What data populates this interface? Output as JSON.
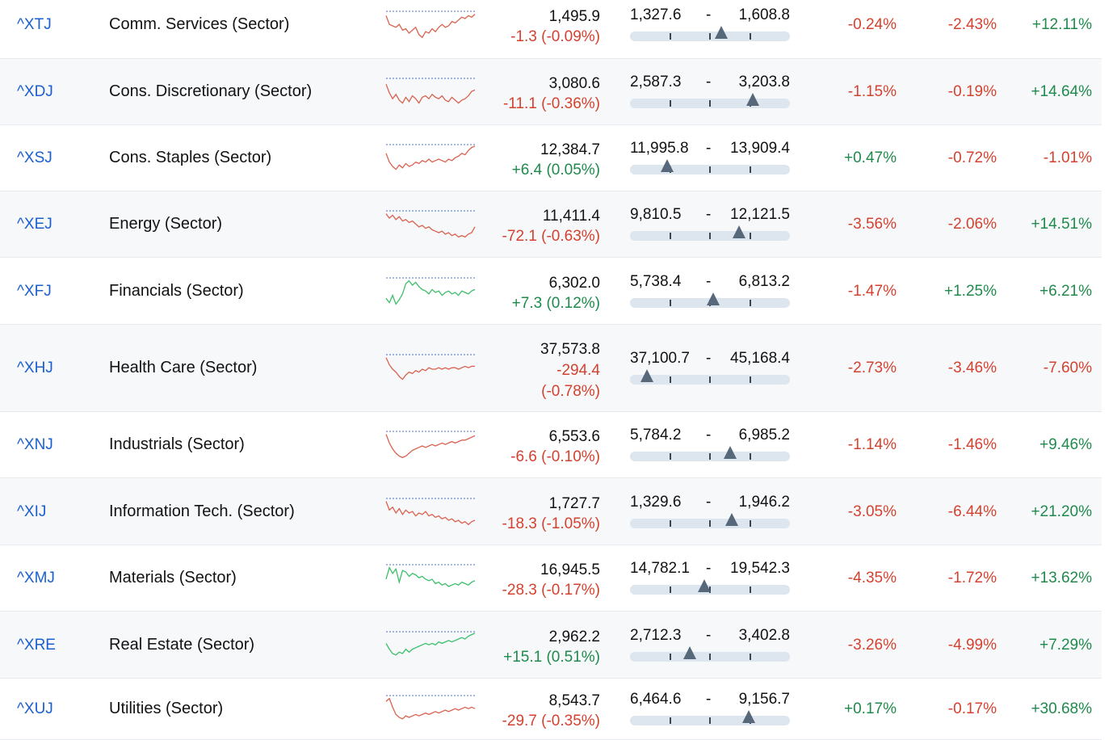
{
  "rows": [
    {
      "symbol": "^XTJ",
      "name": "Comm. Services (Sector)",
      "price": "1,495.9",
      "change": "-1.3 (-0.09%)",
      "change_dir": "neg",
      "low": "1,327.6",
      "high": "1,608.8",
      "range_pos": 0.58,
      "d1": "-0.24%",
      "d2": "-2.43%",
      "d3": "+12.11%",
      "spark": [
        0.15,
        0.45,
        0.5,
        0.55,
        0.45,
        0.65,
        0.6,
        0.75,
        0.65,
        0.55,
        0.8,
        0.9,
        0.7,
        0.75,
        0.6,
        0.7,
        0.55,
        0.45,
        0.55,
        0.5,
        0.35,
        0.4,
        0.3,
        0.2,
        0.25,
        0.15,
        0.2,
        0.1
      ],
      "spark_color": "#d9624f"
    },
    {
      "symbol": "^XDJ",
      "name": "Cons. Discretionary (Sector)",
      "price": "3,080.6",
      "change": "-11.1 (-0.36%)",
      "change_dir": "neg",
      "low": "2,587.3",
      "high": "3,203.8",
      "range_pos": 0.8,
      "d1": "-1.15%",
      "d2": "-0.19%",
      "d3": "+14.64%",
      "spark": [
        0.2,
        0.5,
        0.7,
        0.55,
        0.75,
        0.85,
        0.65,
        0.8,
        0.6,
        0.7,
        0.85,
        0.65,
        0.6,
        0.7,
        0.55,
        0.65,
        0.7,
        0.6,
        0.75,
        0.8,
        0.65,
        0.75,
        0.85,
        0.75,
        0.7,
        0.6,
        0.45,
        0.4
      ],
      "spark_color": "#d9624f"
    },
    {
      "symbol": "^XSJ",
      "name": "Cons. Staples (Sector)",
      "price": "12,384.7",
      "change": "+6.4 (0.05%)",
      "change_dir": "pos",
      "low": "11,995.8",
      "high": "13,909.4",
      "range_pos": 0.2,
      "d1": "+0.47%",
      "d2": "-0.72%",
      "d3": "-1.01%",
      "spark": [
        0.3,
        0.6,
        0.75,
        0.85,
        0.7,
        0.8,
        0.65,
        0.75,
        0.7,
        0.6,
        0.65,
        0.55,
        0.6,
        0.5,
        0.6,
        0.55,
        0.5,
        0.55,
        0.6,
        0.5,
        0.55,
        0.45,
        0.4,
        0.3,
        0.35,
        0.2,
        0.1,
        0.05
      ],
      "spark_color": "#d9624f"
    },
    {
      "symbol": "^XEJ",
      "name": "Energy (Sector)",
      "price": "11,411.4",
      "change": "-72.1 (-0.63%)",
      "change_dir": "neg",
      "low": "9,810.5",
      "high": "12,121.5",
      "range_pos": 0.7,
      "d1": "-3.56%",
      "d2": "-2.06%",
      "d3": "+14.51%",
      "spark": [
        0.1,
        0.25,
        0.15,
        0.3,
        0.2,
        0.35,
        0.3,
        0.4,
        0.35,
        0.45,
        0.55,
        0.5,
        0.6,
        0.55,
        0.65,
        0.7,
        0.75,
        0.7,
        0.8,
        0.75,
        0.85,
        0.8,
        0.9,
        0.85,
        0.9,
        0.8,
        0.75,
        0.55
      ],
      "spark_color": "#d9624f"
    },
    {
      "symbol": "^XFJ",
      "name": "Financials (Sector)",
      "price": "6,302.0",
      "change": "+7.3 (0.12%)",
      "change_dir": "pos",
      "low": "5,738.4",
      "high": "6,813.2",
      "range_pos": 0.52,
      "d1": "-1.47%",
      "d2": "+1.25%",
      "d3": "+6.21%",
      "spark": [
        0.7,
        0.85,
        0.6,
        0.9,
        0.75,
        0.55,
        0.2,
        0.1,
        0.25,
        0.15,
        0.3,
        0.4,
        0.45,
        0.55,
        0.4,
        0.5,
        0.45,
        0.6,
        0.5,
        0.45,
        0.55,
        0.5,
        0.6,
        0.45,
        0.5,
        0.55,
        0.45,
        0.4
      ],
      "spark_color": "#3cbf6a"
    },
    {
      "symbol": "^XHJ",
      "name": "Health Care (Sector)",
      "price": "37,573.8",
      "change": "-294.4 (-0.78%)",
      "change_dir": "neg",
      "low": "37,100.7",
      "high": "45,168.4",
      "range_pos": 0.06,
      "d1": "-2.73%",
      "d2": "-3.46%",
      "d3": "-7.60%",
      "spark": [
        0.1,
        0.35,
        0.5,
        0.6,
        0.75,
        0.85,
        0.7,
        0.6,
        0.65,
        0.55,
        0.6,
        0.5,
        0.55,
        0.45,
        0.5,
        0.5,
        0.45,
        0.5,
        0.45,
        0.5,
        0.45,
        0.45,
        0.5,
        0.45,
        0.4,
        0.45,
        0.4,
        0.4
      ],
      "spark_color": "#d9624f"
    },
    {
      "symbol": "^XNJ",
      "name": "Industrials (Sector)",
      "price": "6,553.6",
      "change": "-6.6 (-0.10%)",
      "change_dir": "neg",
      "low": "5,784.2",
      "high": "6,985.2",
      "range_pos": 0.64,
      "d1": "-1.14%",
      "d2": "-1.46%",
      "d3": "+9.46%",
      "spark": [
        0.1,
        0.4,
        0.6,
        0.75,
        0.85,
        0.9,
        0.85,
        0.75,
        0.65,
        0.6,
        0.55,
        0.5,
        0.55,
        0.5,
        0.45,
        0.5,
        0.45,
        0.4,
        0.45,
        0.4,
        0.35,
        0.4,
        0.35,
        0.3,
        0.3,
        0.25,
        0.2,
        0.15
      ],
      "spark_color": "#d9624f"
    },
    {
      "symbol": "^XIJ",
      "name": "Information Tech. (Sector)",
      "price": "1,727.7",
      "change": "-18.3 (-1.05%)",
      "change_dir": "neg",
      "low": "1,329.6",
      "high": "1,946.2",
      "range_pos": 0.65,
      "d1": "-3.05%",
      "d2": "-6.44%",
      "d3": "+21.20%",
      "spark": [
        0.1,
        0.4,
        0.3,
        0.5,
        0.35,
        0.55,
        0.4,
        0.5,
        0.45,
        0.6,
        0.5,
        0.55,
        0.45,
        0.6,
        0.55,
        0.65,
        0.6,
        0.7,
        0.65,
        0.75,
        0.7,
        0.8,
        0.75,
        0.85,
        0.8,
        0.9,
        0.8,
        0.75
      ],
      "spark_color": "#d9624f"
    },
    {
      "symbol": "^XMJ",
      "name": "Materials (Sector)",
      "price": "16,945.5",
      "change": "-28.3 (-0.17%)",
      "change_dir": "neg",
      "low": "14,782.1",
      "high": "19,542.3",
      "range_pos": 0.46,
      "d1": "-4.35%",
      "d2": "-1.72%",
      "d3": "+13.62%",
      "spark": [
        0.5,
        0.1,
        0.3,
        0.15,
        0.6,
        0.2,
        0.25,
        0.4,
        0.3,
        0.35,
        0.45,
        0.4,
        0.5,
        0.55,
        0.5,
        0.65,
        0.6,
        0.7,
        0.65,
        0.75,
        0.7,
        0.65,
        0.7,
        0.6,
        0.65,
        0.7,
        0.6,
        0.55
      ],
      "spark_color": "#3cbf6a"
    },
    {
      "symbol": "^XRE",
      "name": "Real Estate (Sector)",
      "price": "2,962.2",
      "change": "+15.1 (0.51%)",
      "change_dir": "pos",
      "low": "2,712.3",
      "high": "3,402.8",
      "range_pos": 0.36,
      "d1": "-3.26%",
      "d2": "-4.99%",
      "d3": "+7.29%",
      "spark": [
        0.4,
        0.6,
        0.75,
        0.8,
        0.7,
        0.75,
        0.6,
        0.7,
        0.6,
        0.55,
        0.5,
        0.45,
        0.4,
        0.45,
        0.4,
        0.45,
        0.35,
        0.4,
        0.35,
        0.3,
        0.35,
        0.3,
        0.25,
        0.2,
        0.25,
        0.15,
        0.1,
        0.05
      ],
      "spark_color": "#3cbf6a"
    },
    {
      "symbol": "^XUJ",
      "name": "Utilities (Sector)",
      "price": "8,543.7",
      "change": "-29.7 (-0.35%)",
      "change_dir": "neg",
      "low": "6,464.6",
      "high": "9,156.7",
      "range_pos": 0.77,
      "d1": "+0.17%",
      "d2": "-0.17%",
      "d3": "+30.68%",
      "spark": [
        0.2,
        0.1,
        0.4,
        0.65,
        0.75,
        0.8,
        0.7,
        0.75,
        0.7,
        0.65,
        0.7,
        0.65,
        0.6,
        0.65,
        0.6,
        0.55,
        0.6,
        0.55,
        0.5,
        0.55,
        0.5,
        0.45,
        0.5,
        0.45,
        0.4,
        0.45,
        0.4,
        0.45
      ],
      "spark_color": "#d9624f"
    }
  ]
}
